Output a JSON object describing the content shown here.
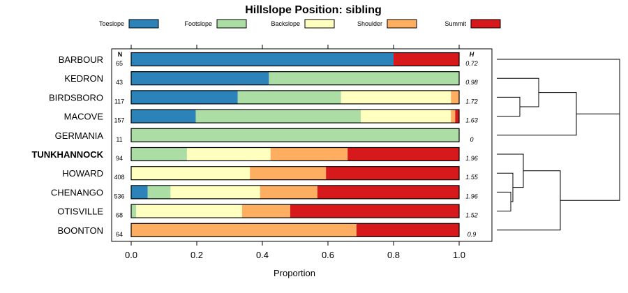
{
  "chart_data": {
    "type": "bar",
    "orientation": "horizontal",
    "stacked": true,
    "title": "Hillslope Position: sibling",
    "xlabel": "Proportion",
    "xlim": [
      0,
      1
    ],
    "x_ticks": [
      "0.0",
      "0.2",
      "0.4",
      "0.6",
      "0.8",
      "1.0"
    ],
    "x_tick_values": [
      0,
      0.2,
      0.4,
      0.6,
      0.8,
      1.0
    ],
    "n_header": "N",
    "h_header": "H",
    "legend_position": "top",
    "highlighted_category": "TUNKHANNOCK",
    "series": [
      {
        "name": "Toeslope",
        "color": "#2b83ba"
      },
      {
        "name": "Footslope",
        "color": "#abdda4"
      },
      {
        "name": "Backslope",
        "color": "#ffffbf"
      },
      {
        "name": "Shoulder",
        "color": "#fdae61"
      },
      {
        "name": "Summit",
        "color": "#d7191c"
      }
    ],
    "rows": [
      {
        "label": "BARBOUR",
        "n": "65",
        "h": "0.72",
        "values": [
          0.8,
          0,
          0,
          0,
          0.2
        ]
      },
      {
        "label": "KEDRON",
        "n": "43",
        "h": "0.98",
        "values": [
          0.42,
          0.58,
          0,
          0,
          0
        ]
      },
      {
        "label": "BIRDSBORO",
        "n": "117",
        "h": "1.72",
        "values": [
          0.325,
          0.315,
          0.335,
          0.025,
          0
        ]
      },
      {
        "label": "MACOVE",
        "n": "157",
        "h": "1.63",
        "values": [
          0.197,
          0.503,
          0.275,
          0.013,
          0.012
        ]
      },
      {
        "label": "GERMANIA",
        "n": "11",
        "h": "0",
        "values": [
          0,
          1.0,
          0,
          0,
          0
        ]
      },
      {
        "label": "TUNKHANNOCK",
        "n": "94",
        "h": "1.96",
        "values": [
          0,
          0.17,
          0.255,
          0.235,
          0.34
        ]
      },
      {
        "label": "HOWARD",
        "n": "408",
        "h": "1.55",
        "values": [
          0,
          0,
          0.362,
          0.232,
          0.406
        ]
      },
      {
        "label": "CHENANGO",
        "n": "536",
        "h": "1.96",
        "values": [
          0.05,
          0.07,
          0.273,
          0.175,
          0.432
        ]
      },
      {
        "label": "OTISVILLE",
        "n": "68",
        "h": "1.52",
        "values": [
          0,
          0.015,
          0.323,
          0.147,
          0.515
        ]
      },
      {
        "label": "BOONTON",
        "n": "64",
        "h": "0.9",
        "values": [
          0,
          0,
          0,
          0.687,
          0.313
        ]
      }
    ]
  }
}
